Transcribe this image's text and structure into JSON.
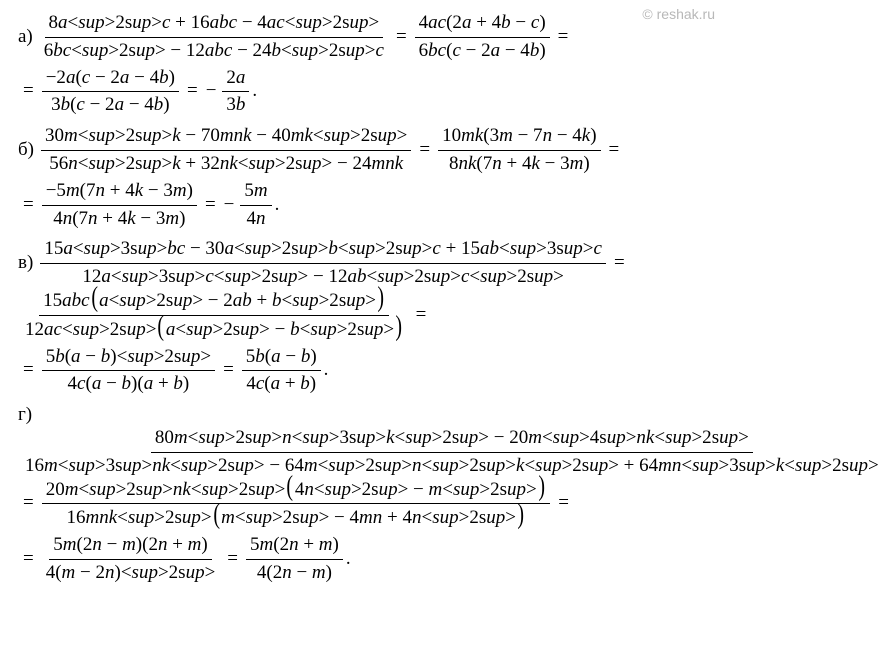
{
  "watermark": "© reshak.ru",
  "problems": {
    "a": {
      "label": "а)",
      "l1_f1_num": "8a²c + 16abc − 4ac²",
      "l1_f1_den": "6bc² − 12abc − 24b²c",
      "l1_f2_num": "4ac(2a + 4b − c)",
      "l1_f2_den": "6bc(c − 2a − 4b)",
      "l2_f1_num": "−2a(c − 2a − 4b)",
      "l2_f1_den": "3b(c − 2a − 4b)",
      "l2_f2_num": "2a",
      "l2_f2_den": "3b"
    },
    "b": {
      "label": "б)",
      "l1_f1_num": "30m²k − 70mnk − 40mk²",
      "l1_f1_den": "56n²k + 32nk² − 24mnk",
      "l1_f2_num": "10mk(3m − 7n − 4k)",
      "l1_f2_den": "8nk(7n + 4k − 3m)",
      "l2_f1_num": "−5m(7n + 4k − 3m)",
      "l2_f1_den": "4n(7n + 4k − 3m)",
      "l2_f2_num": "5m",
      "l2_f2_den": "4n"
    },
    "c": {
      "label": "в)",
      "l1_f1_num": "15a³bc − 30a²b²c + 15ab³c",
      "l1_f1_den": "12a³c² − 12ab²c²",
      "l1_f2_num_pre": "15abc",
      "l1_f2_num_in": "a² − 2ab + b²",
      "l1_f2_den_pre": "12ac²",
      "l1_f2_den_in": "a² − b²",
      "l2_f1_num": "5b(a − b)²",
      "l2_f1_den": "4c(a − b)(a + b)",
      "l2_f2_num": "5b(a − b)",
      "l2_f2_den": "4c(a + b)"
    },
    "d": {
      "label": "г)",
      "l1_f1_num": "80m²n³k² − 20m⁴nk²",
      "l1_f1_den": "16m³nk² − 64m²n²k² + 64mn³k²",
      "l1_f2_num_pre": "20m²nk²",
      "l1_f2_num_in": "4n² − m²",
      "l1_f2_den_pre": "16mnk²",
      "l1_f2_den_in": "m² − 4mn + 4n²",
      "l2_f1_num": "5m(2n − m)(2n + m)",
      "l2_f1_den": "4(m − 2n)²",
      "l2_f2_num": "5m(2n + m)",
      "l2_f2_den": "4(2n − m)"
    }
  }
}
